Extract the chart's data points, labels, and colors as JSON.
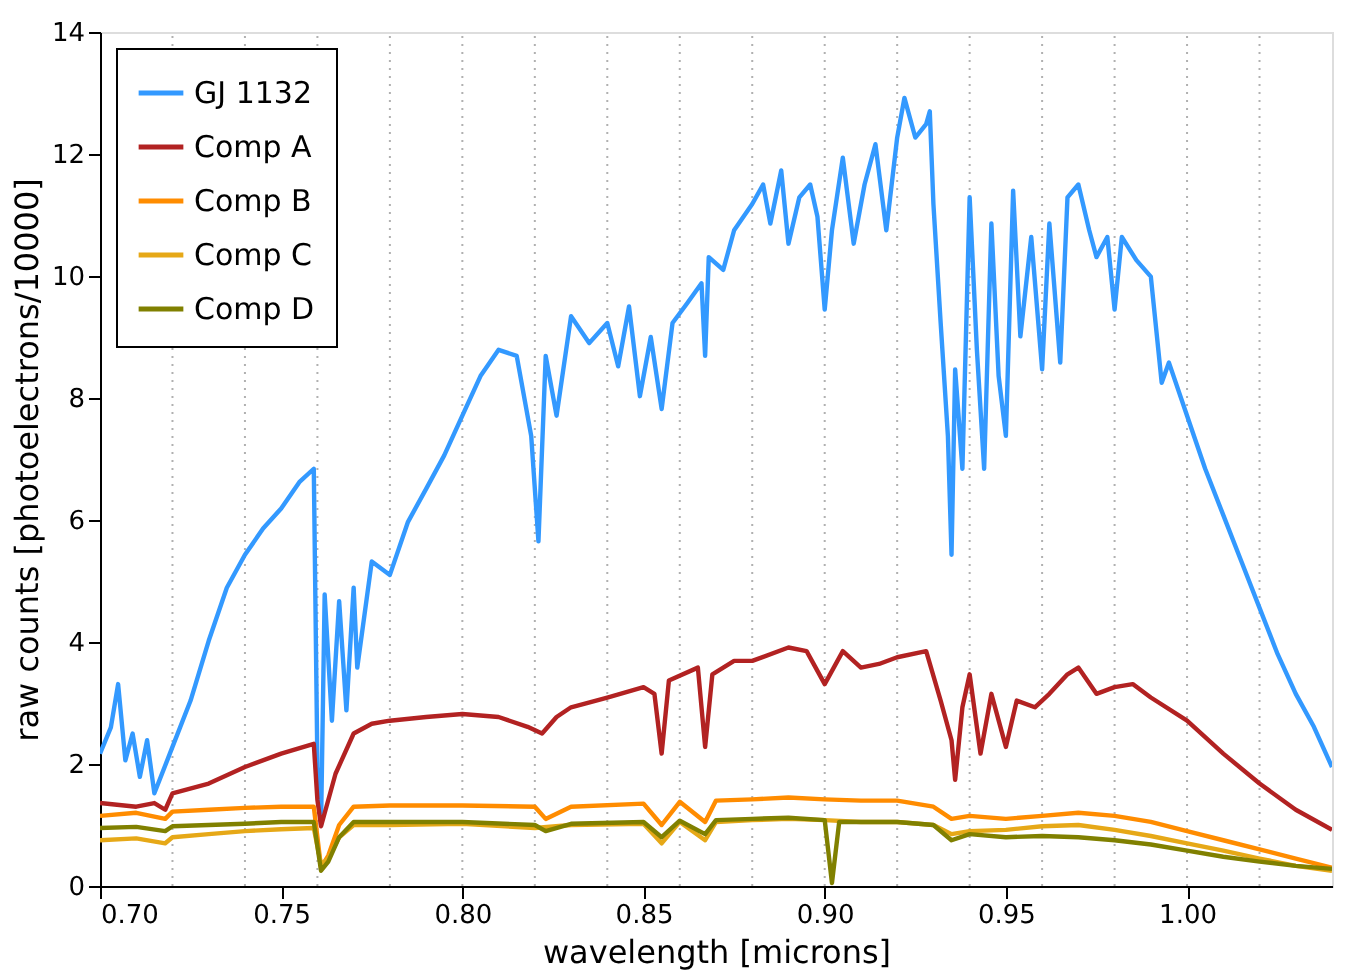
{
  "chart_data": {
    "type": "line",
    "xlabel": "wavelength [microns]",
    "ylabel": "raw counts [photoelectrons/10000]",
    "xlim": [
      0.7,
      1.04
    ],
    "ylim": [
      0,
      14
    ],
    "xticks": [
      {
        "value": 0.7,
        "label": "0.70"
      },
      {
        "value": 0.75,
        "label": "0.75"
      },
      {
        "value": 0.8,
        "label": "0.80"
      },
      {
        "value": 0.85,
        "label": "0.85"
      },
      {
        "value": 0.9,
        "label": "0.90"
      },
      {
        "value": 0.95,
        "label": "0.95"
      },
      {
        "value": 1.0,
        "label": "1.00"
      }
    ],
    "yticks": [
      0,
      2,
      4,
      6,
      8,
      10,
      12,
      14
    ],
    "grid": false,
    "legend": "top left",
    "line_style": "solid",
    "marker": "none",
    "ref_lines": [
      {
        "axis": "x",
        "value": 0.72,
        "color": "#b0b0b0",
        "line_style": "dotted"
      },
      {
        "axis": "x",
        "value": 0.74,
        "color": "#b0b0b0",
        "line_style": "dotted"
      },
      {
        "axis": "x",
        "value": 0.76,
        "color": "#b0b0b0",
        "line_style": "dotted"
      },
      {
        "axis": "x",
        "value": 0.78,
        "color": "#b0b0b0",
        "line_style": "dotted"
      },
      {
        "axis": "x",
        "value": 0.8,
        "color": "#b0b0b0",
        "line_style": "dotted"
      },
      {
        "axis": "x",
        "value": 0.82,
        "color": "#b0b0b0",
        "line_style": "dotted"
      },
      {
        "axis": "x",
        "value": 0.84,
        "color": "#b0b0b0",
        "line_style": "dotted"
      },
      {
        "axis": "x",
        "value": 0.86,
        "color": "#b0b0b0",
        "line_style": "dotted"
      },
      {
        "axis": "x",
        "value": 0.88,
        "color": "#b0b0b0",
        "line_style": "dotted"
      },
      {
        "axis": "x",
        "value": 0.9,
        "color": "#b0b0b0",
        "line_style": "dotted"
      },
      {
        "axis": "x",
        "value": 0.92,
        "color": "#b0b0b0",
        "line_style": "dotted"
      },
      {
        "axis": "x",
        "value": 0.94,
        "color": "#b0b0b0",
        "line_style": "dotted"
      },
      {
        "axis": "x",
        "value": 0.96,
        "color": "#b0b0b0",
        "line_style": "dotted"
      },
      {
        "axis": "x",
        "value": 0.98,
        "color": "#b0b0b0",
        "line_style": "dotted"
      },
      {
        "axis": "x",
        "value": 1.0,
        "color": "#b0b0b0",
        "line_style": "dotted"
      },
      {
        "axis": "x",
        "value": 1.02,
        "color": "#b0b0b0",
        "line_style": "dotted"
      }
    ],
    "series": [
      {
        "name": "GJ 1132",
        "color": "#3399ff",
        "x": [
          0.7,
          0.703,
          0.705,
          0.707,
          0.709,
          0.711,
          0.713,
          0.715,
          0.72,
          0.725,
          0.73,
          0.735,
          0.74,
          0.745,
          0.75,
          0.755,
          0.759,
          0.76,
          0.761,
          0.762,
          0.764,
          0.766,
          0.768,
          0.77,
          0.771,
          0.775,
          0.78,
          0.785,
          0.79,
          0.795,
          0.8,
          0.805,
          0.81,
          0.815,
          0.819,
          0.821,
          0.823,
          0.826,
          0.83,
          0.835,
          0.84,
          0.843,
          0.846,
          0.849,
          0.852,
          0.855,
          0.858,
          0.862,
          0.866,
          0.867,
          0.868,
          0.872,
          0.875,
          0.88,
          0.883,
          0.885,
          0.888,
          0.89,
          0.893,
          0.896,
          0.898,
          0.9,
          0.902,
          0.905,
          0.908,
          0.911,
          0.914,
          0.917,
          0.92,
          0.922,
          0.925,
          0.928,
          0.929,
          0.93,
          0.932,
          0.934,
          0.935,
          0.936,
          0.938,
          0.94,
          0.942,
          0.944,
          0.946,
          0.948,
          0.95,
          0.952,
          0.954,
          0.957,
          0.96,
          0.962,
          0.965,
          0.967,
          0.97,
          0.973,
          0.975,
          0.978,
          0.98,
          0.982,
          0.986,
          0.99,
          0.993,
          0.995,
          1.0,
          1.005,
          1.01,
          1.015,
          1.02,
          1.025,
          1.03,
          1.035,
          1.04
        ],
        "values": [
          2.17,
          2.6,
          3.31,
          2.06,
          2.5,
          1.79,
          2.39,
          1.52,
          2.28,
          3.04,
          4.02,
          4.89,
          5.43,
          5.86,
          6.19,
          6.62,
          6.84,
          1.95,
          1.0,
          4.78,
          2.71,
          4.67,
          2.88,
          4.89,
          3.58,
          5.32,
          5.1,
          5.97,
          6.51,
          7.06,
          7.71,
          8.36,
          8.79,
          8.69,
          7.38,
          5.65,
          8.69,
          7.71,
          9.34,
          8.9,
          9.23,
          8.52,
          9.5,
          8.03,
          9.0,
          7.82,
          9.23,
          9.55,
          9.88,
          8.69,
          10.31,
          10.1,
          10.75,
          11.18,
          11.5,
          10.86,
          11.73,
          10.53,
          11.29,
          11.5,
          10.97,
          9.45,
          10.75,
          11.94,
          10.53,
          11.5,
          12.16,
          10.75,
          12.27,
          12.92,
          12.27,
          12.49,
          12.7,
          11.18,
          9.23,
          7.38,
          5.43,
          8.47,
          6.84,
          11.29,
          8.79,
          6.84,
          10.86,
          8.36,
          7.38,
          11.4,
          9.01,
          10.64,
          8.47,
          10.86,
          8.58,
          11.29,
          11.5,
          10.75,
          10.31,
          10.64,
          9.45,
          10.64,
          10.26,
          9.99,
          8.25,
          8.58,
          7.71,
          6.84,
          6.08,
          5.32,
          4.56,
          3.8,
          3.15,
          2.61,
          1.95
        ]
      },
      {
        "name": "Comp A",
        "color": "#b22222",
        "x": [
          0.7,
          0.71,
          0.715,
          0.718,
          0.72,
          0.73,
          0.74,
          0.75,
          0.759,
          0.76,
          0.761,
          0.763,
          0.765,
          0.77,
          0.775,
          0.78,
          0.79,
          0.8,
          0.81,
          0.818,
          0.822,
          0.826,
          0.83,
          0.84,
          0.85,
          0.853,
          0.855,
          0.857,
          0.865,
          0.867,
          0.869,
          0.875,
          0.88,
          0.89,
          0.895,
          0.9,
          0.905,
          0.91,
          0.915,
          0.92,
          0.928,
          0.932,
          0.935,
          0.936,
          0.938,
          0.94,
          0.943,
          0.946,
          0.95,
          0.953,
          0.958,
          0.962,
          0.967,
          0.97,
          0.975,
          0.98,
          0.985,
          0.99,
          1.0,
          1.01,
          1.02,
          1.03,
          1.04
        ],
        "values": [
          1.36,
          1.3,
          1.36,
          1.25,
          1.52,
          1.68,
          1.95,
          2.17,
          2.33,
          1.41,
          0.98,
          1.41,
          1.84,
          2.5,
          2.66,
          2.71,
          2.77,
          2.82,
          2.77,
          2.61,
          2.5,
          2.77,
          2.93,
          3.09,
          3.26,
          3.15,
          2.17,
          3.37,
          3.58,
          2.28,
          3.47,
          3.69,
          3.69,
          3.91,
          3.85,
          3.31,
          3.85,
          3.58,
          3.64,
          3.75,
          3.85,
          3.04,
          2.39,
          1.74,
          2.93,
          3.47,
          2.17,
          3.15,
          2.28,
          3.04,
          2.93,
          3.15,
          3.47,
          3.58,
          3.15,
          3.26,
          3.31,
          3.09,
          2.71,
          2.17,
          1.68,
          1.25,
          0.92
        ]
      },
      {
        "name": "Comp B",
        "color": "#ff8c00",
        "x": [
          0.7,
          0.71,
          0.718,
          0.72,
          0.73,
          0.74,
          0.75,
          0.759,
          0.761,
          0.763,
          0.766,
          0.77,
          0.78,
          0.8,
          0.82,
          0.823,
          0.83,
          0.85,
          0.855,
          0.86,
          0.867,
          0.87,
          0.88,
          0.89,
          0.9,
          0.91,
          0.92,
          0.93,
          0.935,
          0.94,
          0.95,
          0.96,
          0.97,
          0.98,
          0.99,
          1.0,
          1.01,
          1.02,
          1.03,
          1.04
        ],
        "values": [
          1.15,
          1.2,
          1.1,
          1.22,
          1.25,
          1.28,
          1.3,
          1.3,
          0.3,
          0.5,
          1.0,
          1.3,
          1.32,
          1.32,
          1.3,
          1.1,
          1.3,
          1.35,
          1.0,
          1.38,
          1.05,
          1.4,
          1.42,
          1.45,
          1.42,
          1.4,
          1.4,
          1.3,
          1.1,
          1.15,
          1.1,
          1.15,
          1.2,
          1.15,
          1.05,
          0.9,
          0.75,
          0.6,
          0.45,
          0.3
        ]
      },
      {
        "name": "Comp C",
        "color": "#e6a817",
        "x": [
          0.7,
          0.71,
          0.718,
          0.72,
          0.73,
          0.74,
          0.75,
          0.759,
          0.761,
          0.763,
          0.766,
          0.77,
          0.78,
          0.8,
          0.82,
          0.83,
          0.85,
          0.855,
          0.86,
          0.867,
          0.87,
          0.88,
          0.89,
          0.9,
          0.91,
          0.92,
          0.93,
          0.935,
          0.94,
          0.95,
          0.96,
          0.97,
          0.98,
          0.99,
          1.0,
          1.01,
          1.02,
          1.03,
          1.04
        ],
        "values": [
          0.75,
          0.78,
          0.7,
          0.8,
          0.85,
          0.9,
          0.93,
          0.95,
          0.35,
          0.45,
          0.8,
          1.0,
          1.0,
          1.02,
          0.95,
          1.0,
          1.02,
          0.7,
          1.05,
          0.75,
          1.05,
          1.08,
          1.1,
          1.08,
          1.05,
          1.05,
          1.0,
          0.85,
          0.9,
          0.92,
          0.98,
          1.0,
          0.92,
          0.82,
          0.7,
          0.58,
          0.45,
          0.33,
          0.25
        ]
      },
      {
        "name": "Comp D",
        "color": "#808000",
        "x": [
          0.7,
          0.71,
          0.718,
          0.72,
          0.73,
          0.74,
          0.75,
          0.759,
          0.761,
          0.763,
          0.766,
          0.77,
          0.78,
          0.8,
          0.82,
          0.823,
          0.83,
          0.85,
          0.855,
          0.86,
          0.867,
          0.87,
          0.88,
          0.89,
          0.9,
          0.902,
          0.904,
          0.91,
          0.92,
          0.93,
          0.935,
          0.94,
          0.95,
          0.96,
          0.97,
          0.98,
          0.99,
          1.0,
          1.01,
          1.02,
          1.03,
          1.04
        ],
        "values": [
          0.95,
          0.97,
          0.9,
          0.98,
          1.0,
          1.02,
          1.05,
          1.05,
          0.25,
          0.4,
          0.8,
          1.05,
          1.05,
          1.05,
          1.0,
          0.9,
          1.02,
          1.05,
          0.8,
          1.07,
          0.85,
          1.08,
          1.1,
          1.12,
          1.08,
          0.05,
          1.05,
          1.05,
          1.05,
          1.0,
          0.75,
          0.85,
          0.8,
          0.82,
          0.8,
          0.75,
          0.68,
          0.58,
          0.48,
          0.4,
          0.33,
          0.28
        ]
      }
    ]
  }
}
